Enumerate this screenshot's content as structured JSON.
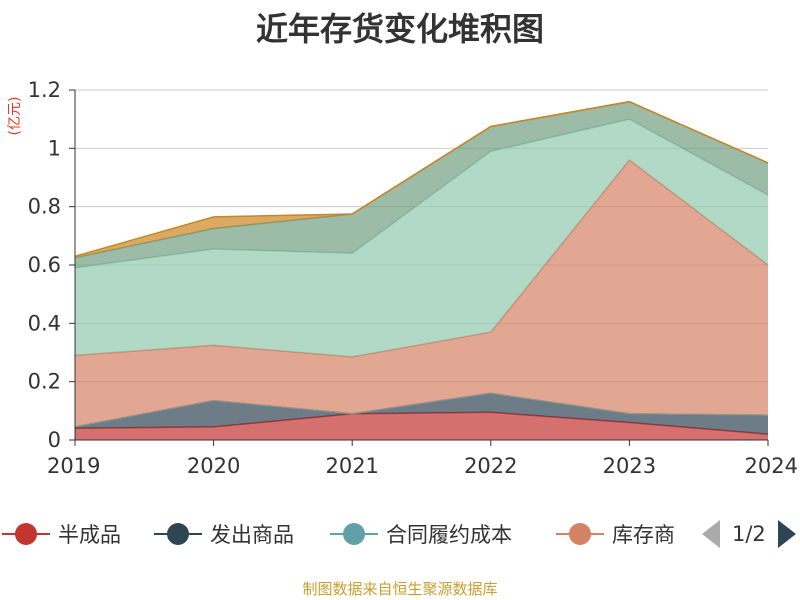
{
  "chart_data": {
    "type": "area",
    "stacked": true,
    "title": "近年存货变化堆积图",
    "unit_label": "(亿元)",
    "x": [
      "2019",
      "2020",
      "2021",
      "2022",
      "2023",
      "2024"
    ],
    "ylim": [
      0,
      1.2
    ],
    "yticks": [
      "0",
      "0.2",
      "0.4",
      "0.6",
      "0.8",
      "1",
      "1.2"
    ],
    "grid": true,
    "legend_position": "bottom",
    "series": [
      {
        "name": "半成品",
        "color": "#c23531",
        "values": [
          0.04,
          0.045,
          0.09,
          0.095,
          0.06,
          0.02
        ]
      },
      {
        "name": "发出商品",
        "color": "#2f4554",
        "values": [
          0.005,
          0.09,
          0.0,
          0.065,
          0.03,
          0.065
        ]
      },
      {
        "name": "合同履约成本",
        "color": "#61a0a8",
        "values": [
          0.0,
          0.0,
          0.0,
          0.0,
          0.0,
          0.0
        ]
      },
      {
        "name": "库存商品",
        "color": "#d48265",
        "values": [
          0.245,
          0.19,
          0.195,
          0.21,
          0.87,
          0.515
        ]
      },
      {
        "color": "#91c7ae",
        "values": [
          0.3,
          0.33,
          0.355,
          0.62,
          0.14,
          0.24
        ]
      },
      {
        "color": "#749f83",
        "values": [
          0.035,
          0.07,
          0.135,
          0.085,
          0.06,
          0.11
        ]
      },
      {
        "color": "#ca8622",
        "values": [
          0.005,
          0.04,
          0.0,
          0.0,
          0.0,
          0.0
        ]
      }
    ]
  },
  "legend": {
    "items": [
      "半成品",
      "发出商品",
      "合同履约成本",
      "库存商"
    ],
    "page_indicator": "1/2"
  },
  "source_note": "制图数据来自恒生聚源数据库"
}
